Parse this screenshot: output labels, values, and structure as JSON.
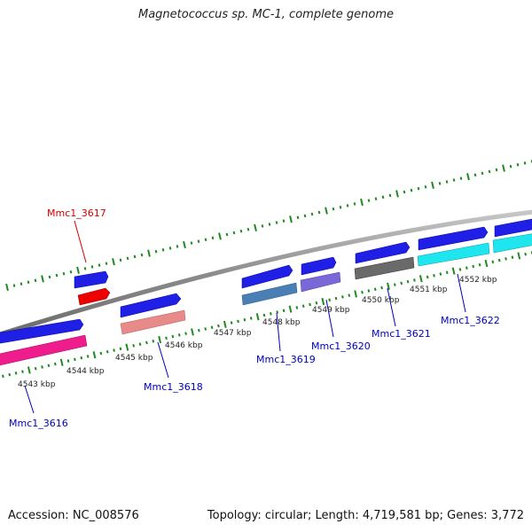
{
  "title": "Magnetococcus sp. MC-1, complete genome",
  "footer": {
    "accession": "Accession: NC_008576",
    "summary": "Topology: circular; Length: 4,719,581 bp; Genes: 3,772"
  },
  "colors": {
    "backbone": "#8c8c8c",
    "tick": "#1f8a1f",
    "highlight_label": "#d00000",
    "gene_label": "#0000bb",
    "cds_blue": "#1f1fe6"
  },
  "tick_labels": [
    "4543 kbp",
    "4544 kbp",
    "4545 kbp",
    "4546 kbp",
    "4547 kbp",
    "4548 kbp",
    "4549 kbp",
    "4550 kbp",
    "4551 kbp",
    "4552 kbp"
  ],
  "gene_labels": [
    {
      "id": "Mmc1_3616",
      "color": "#0000bb"
    },
    {
      "id": "Mmc1_3617",
      "color": "#d00000"
    },
    {
      "id": "Mmc1_3618",
      "color": "#0000bb"
    },
    {
      "id": "Mmc1_3619",
      "color": "#0000bb"
    },
    {
      "id": "Mmc1_3620",
      "color": "#0000bb"
    },
    {
      "id": "Mmc1_3621",
      "color": "#0000bb"
    },
    {
      "id": "Mmc1_3622",
      "color": "#0000bb"
    }
  ],
  "feature_colors": {
    "outer_track": [
      "#1f1fe6",
      "#1f1fe6",
      "#1f1fe6",
      "#1f1fe6",
      "#1f1fe6"
    ],
    "mmc1_3617_feature": "#ee0000",
    "inner_features": [
      "#ee1c8c",
      "#e88a8a",
      "#4a7fb5",
      "#7a68d8",
      "#6a6a6a",
      "#1fe6ee",
      "#1fe6ee"
    ]
  }
}
